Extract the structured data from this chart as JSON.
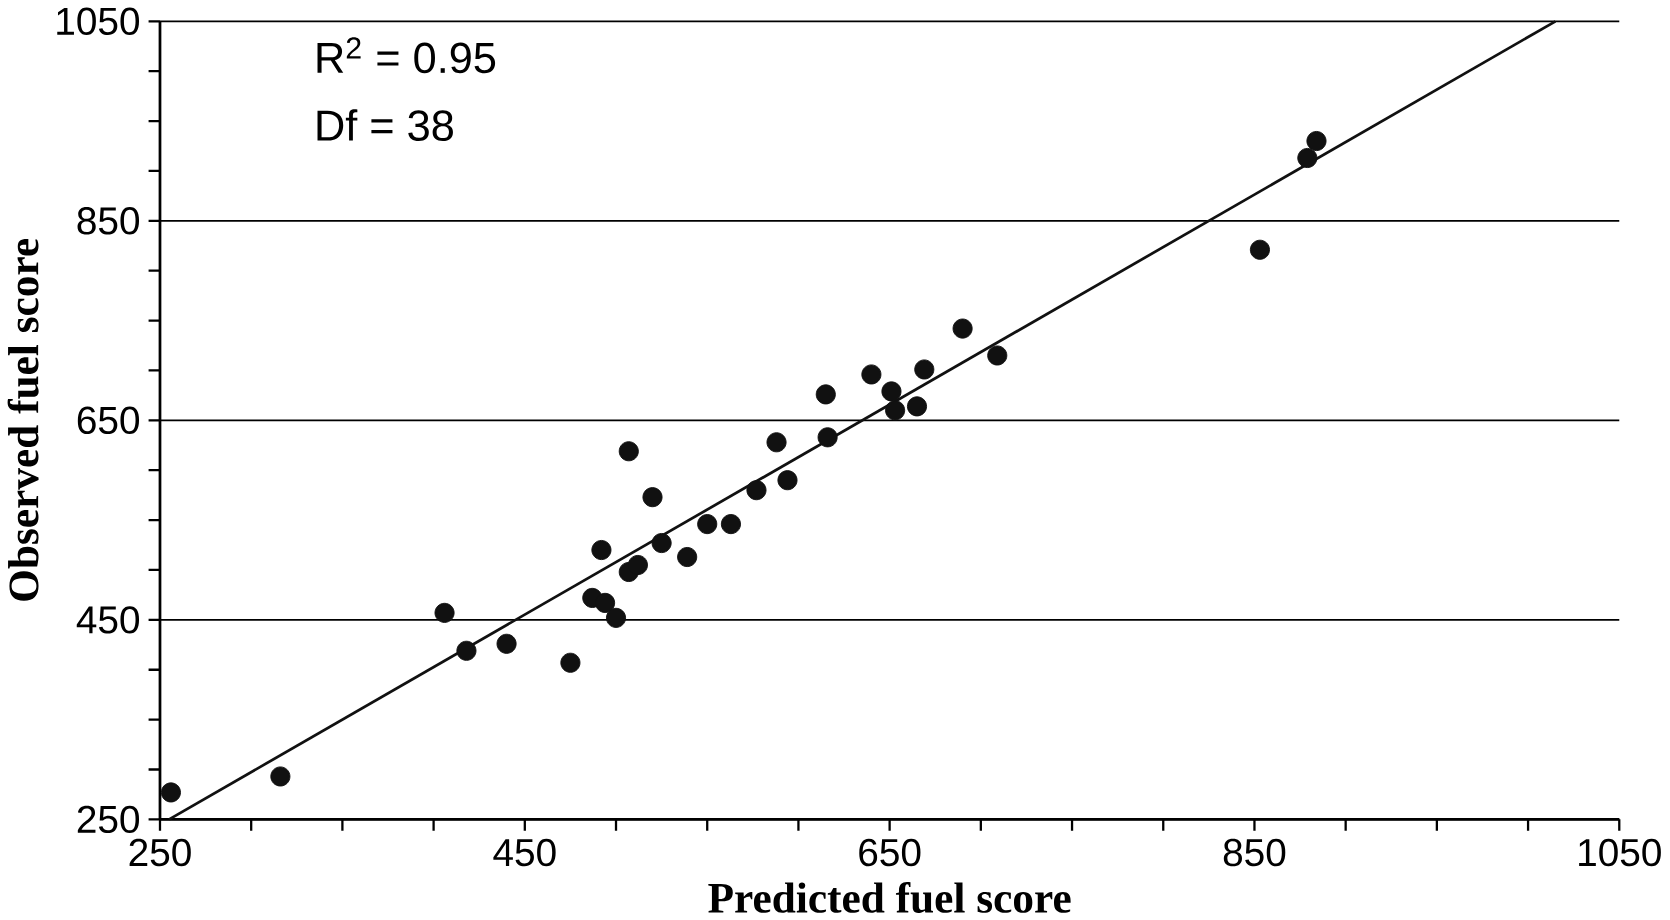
{
  "chart_data": {
    "type": "scatter",
    "xlabel": "Predicted fuel score",
    "ylabel": "Observed fuel score",
    "annotations": [
      "R$^{2}$ = 0.95",
      "Df =  38"
    ],
    "xlim": [
      250,
      1050
    ],
    "ylim": [
      250,
      1050
    ],
    "xticks": [
      250,
      {
        "value": 300,
        "label": null
      },
      {
        "value": 350,
        "label": null
      },
      {
        "value": 400,
        "label": null
      },
      450,
      {
        "value": 500,
        "label": null
      },
      {
        "value": 550,
        "label": null
      },
      {
        "value": 600,
        "label": null
      },
      650,
      {
        "value": 700,
        "label": null
      },
      {
        "value": 750,
        "label": null
      },
      {
        "value": 800,
        "label": null
      },
      850,
      {
        "value": 900,
        "label": null
      },
      {
        "value": 950,
        "label": null
      },
      {
        "value": 1000,
        "label": null
      },
      1050
    ],
    "yticks": [
      250,
      {
        "value": 300,
        "label": null
      },
      {
        "value": 350,
        "label": null
      },
      {
        "value": 400,
        "label": null
      },
      450,
      {
        "value": 500,
        "label": null
      },
      {
        "value": 550,
        "label": null
      },
      {
        "value": 600,
        "label": null
      },
      650,
      {
        "value": 700,
        "label": null
      },
      {
        "value": 750,
        "label": null
      },
      {
        "value": 800,
        "label": null
      },
      850,
      {
        "value": 900,
        "label": null
      },
      {
        "value": 950,
        "label": null
      },
      {
        "value": 1000,
        "label": null
      },
      1050
    ],
    "grid": "y",
    "series": [
      {
        "marker": "circle",
        "color": "#111111",
        "x": [
          256,
          316,
          406,
          418,
          440,
          475,
          507,
          520,
          492,
          487,
          494,
          500,
          507,
          512,
          525,
          539,
          550,
          563,
          577,
          588,
          615,
          616,
          594,
          640,
          651,
          653,
          665,
          669,
          690,
          709,
          853,
          879,
          884
        ],
        "values": [
          277,
          293,
          457,
          419,
          426,
          407,
          619,
          573,
          520,
          472,
          467,
          452,
          498,
          505,
          527,
          513,
          546,
          546,
          580,
          628,
          676,
          633,
          590,
          696,
          679,
          660,
          664,
          701,
          742,
          715,
          821,
          913,
          930
        ]
      },
      {
        "type": "line",
        "color": "#111111",
        "marker": "none",
        "x": [
          255,
          1015
        ],
        "values": [
          250,
          1050
        ]
      }
    ]
  }
}
